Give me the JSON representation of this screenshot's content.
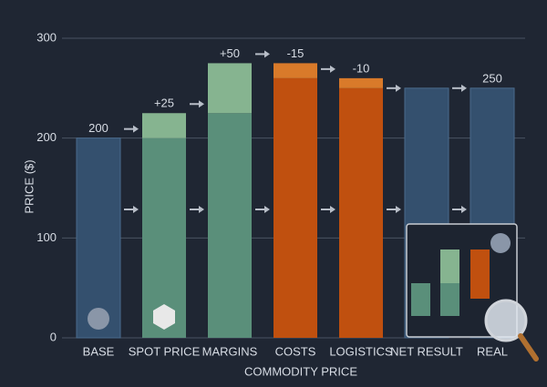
{
  "chart_data": {
    "type": "waterfall",
    "x_label": "COMMODITY PRICE",
    "y_label": "PRICE ($)",
    "categories": [
      "BASE",
      "SPOT PRICE",
      "MARGINS",
      "COSTS",
      "LOGISTICS",
      "NET RESULT",
      "REAL"
    ],
    "values": [
      200,
      25,
      50,
      -15,
      -10,
      250,
      250
    ],
    "value_labels": [
      "200",
      "+25",
      "+50",
      "-15",
      "-10",
      null,
      "250"
    ],
    "measure": [
      "absolute",
      "relative",
      "relative",
      "relative",
      "relative",
      "absolute",
      "absolute"
    ],
    "colors": [
      "#34506e",
      "#86b490",
      "#86b490",
      "#d97a2a",
      "#d97a2a",
      "#34506e",
      "#34506e"
    ],
    "base_colors": [
      "#34506e",
      "#5a8f7a",
      "#5a8f7a",
      "#c0500f",
      "#c0500f",
      "#34506e",
      "#34506e"
    ],
    "ylim": [
      0,
      300
    ],
    "yticks": [
      0,
      100,
      200,
      300
    ],
    "grid": true
  }
}
